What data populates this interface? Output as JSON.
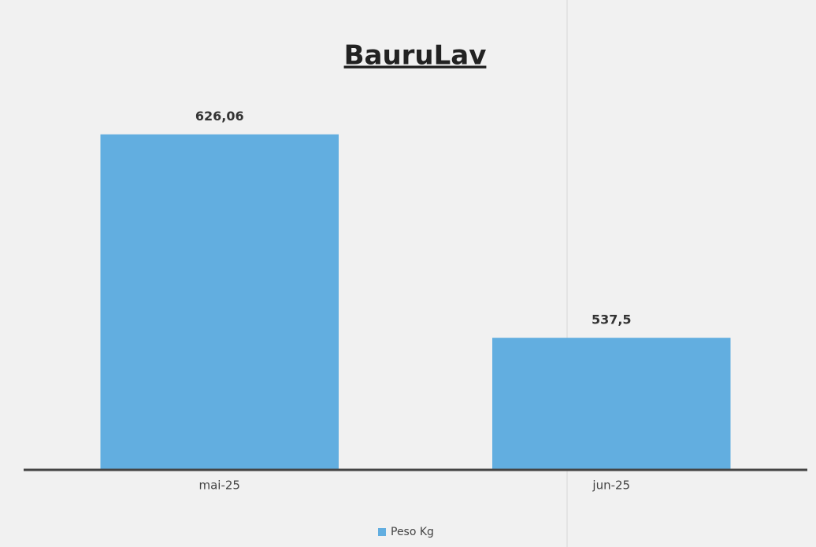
{
  "chart_data": {
    "type": "bar",
    "title": "BauruLav",
    "categories": [
      "mai-25",
      "jun-25"
    ],
    "series": [
      {
        "name": "Peso Kg",
        "color": "#62aee0",
        "values": [
          626.06,
          537.5
        ],
        "value_labels": [
          "626,06",
          "537,5"
        ]
      }
    ],
    "ylim": [
      480,
      640
    ],
    "legend": "bottom"
  }
}
